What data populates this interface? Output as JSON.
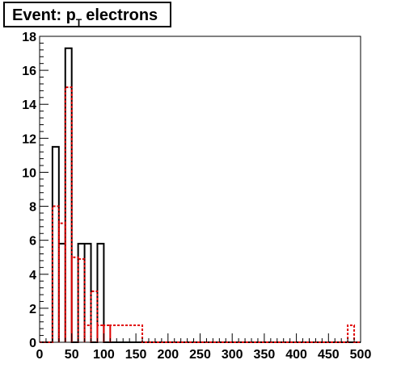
{
  "title": {
    "main": "Event: p",
    "subscript": "T",
    "rest": "electrons"
  },
  "chart_data": {
    "type": "bar",
    "title": "Event: p_T electrons",
    "xlabel": "",
    "ylabel": "",
    "xlim": [
      0,
      500
    ],
    "ylim": [
      0,
      18
    ],
    "grid": false,
    "x_ticks": [
      "0",
      "50",
      "100",
      "150",
      "200",
      "250",
      "300",
      "350",
      "400",
      "450",
      "500"
    ],
    "y_ticks": [
      "0",
      "2",
      "4",
      "6",
      "8",
      "10",
      "12",
      "14",
      "16",
      "18"
    ],
    "bin_width": 10,
    "series": [
      {
        "color": "#000000",
        "line_style": "solid",
        "bins": [
          {
            "x0": 20,
            "x1": 30,
            "y": 11.5
          },
          {
            "x0": 30,
            "x1": 40,
            "y": 5.8
          },
          {
            "x0": 40,
            "x1": 50,
            "y": 17.3
          },
          {
            "x0": 60,
            "x1": 70,
            "y": 5.8
          },
          {
            "x0": 70,
            "x1": 80,
            "y": 5.8
          },
          {
            "x0": 90,
            "x1": 100,
            "y": 5.8
          }
        ]
      },
      {
        "color": "#e00000",
        "line_style": "dashed",
        "bins": [
          {
            "x0": 20,
            "x1": 30,
            "y": 8.0
          },
          {
            "x0": 30,
            "x1": 40,
            "y": 7.0
          },
          {
            "x0": 40,
            "x1": 50,
            "y": 15.0
          },
          {
            "x0": 50,
            "x1": 60,
            "y": 5.0
          },
          {
            "x0": 60,
            "x1": 70,
            "y": 4.9
          },
          {
            "x0": 70,
            "x1": 80,
            "y": 1.0
          },
          {
            "x0": 80,
            "x1": 90,
            "y": 3.0
          },
          {
            "x0": 90,
            "x1": 100,
            "y": 1.0
          },
          {
            "x0": 100,
            "x1": 110,
            "y": 1.0
          },
          {
            "x0": 110,
            "x1": 160,
            "y": 1.0
          },
          {
            "x0": 480,
            "x1": 490,
            "y": 1.0
          }
        ]
      }
    ]
  }
}
